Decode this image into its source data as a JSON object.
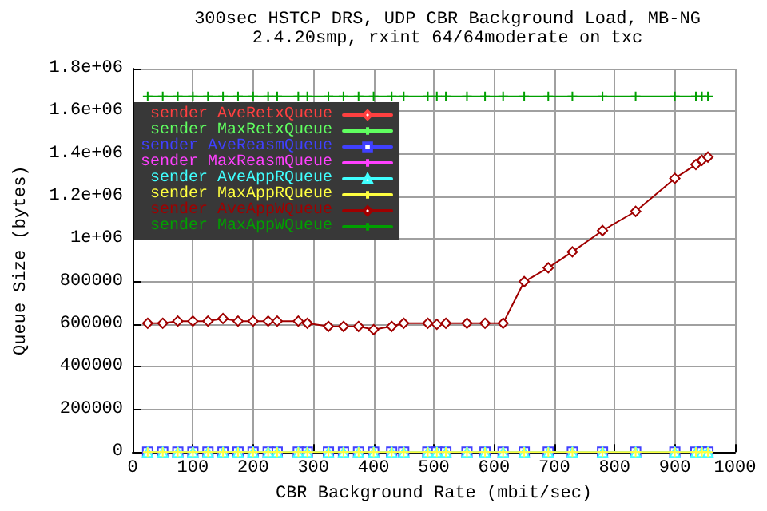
{
  "chart_data": {
    "type": "line",
    "title": "300sec HSTCP DRS, UDP CBR Background Load, MB-NG",
    "subtitle": "2.4.20smp, rxint 64/64moderate on txc",
    "xlabel": "CBR Background Rate (mbit/sec)",
    "ylabel": "Queue Size (bytes)",
    "x": [
      25,
      50,
      75,
      100,
      125,
      150,
      175,
      200,
      225,
      240,
      275,
      290,
      325,
      350,
      375,
      400,
      430,
      450,
      490,
      505,
      520,
      555,
      585,
      615,
      650,
      690,
      730,
      780,
      835,
      900,
      935,
      945,
      955
    ],
    "series": [
      {
        "name": "sender AveRetxQueue",
        "color": "#ff4040",
        "marker": "diamond",
        "values": [
          null,
          null,
          null,
          null,
          null,
          null,
          null,
          null,
          null,
          null,
          null,
          null,
          null,
          null,
          null,
          null,
          null,
          null,
          null,
          null,
          null,
          null,
          null,
          null,
          null,
          null,
          null,
          null,
          null,
          null,
          null,
          null,
          null
        ]
      },
      {
        "name": "sender MaxRetxQueue",
        "color": "#60ff60",
        "marker": "cross",
        "values": [
          null,
          null,
          null,
          null,
          null,
          null,
          null,
          null,
          null,
          null,
          null,
          null,
          null,
          null,
          null,
          null,
          null,
          null,
          null,
          null,
          null,
          null,
          null,
          null,
          null,
          null,
          null,
          null,
          null,
          null,
          null,
          null,
          null
        ]
      },
      {
        "name": "sender AveReasmQueue",
        "color": "#4040ff",
        "marker": "square",
        "values": [
          0,
          0,
          0,
          0,
          0,
          0,
          0,
          0,
          0,
          0,
          0,
          0,
          0,
          0,
          0,
          0,
          0,
          0,
          0,
          0,
          0,
          0,
          0,
          0,
          0,
          0,
          0,
          0,
          0,
          0,
          0,
          0,
          0
        ]
      },
      {
        "name": "sender MaxReasmQueue",
        "color": "#ff40ff",
        "marker": "cross",
        "values": [
          null,
          null,
          null,
          null,
          null,
          null,
          null,
          null,
          null,
          null,
          null,
          null,
          null,
          null,
          null,
          null,
          null,
          null,
          null,
          null,
          null,
          null,
          null,
          null,
          null,
          null,
          null,
          null,
          null,
          null,
          null,
          null,
          null
        ]
      },
      {
        "name": "sender AveAppRQueue",
        "color": "#40ffff",
        "marker": "triangle",
        "values": [
          0,
          0,
          0,
          0,
          0,
          0,
          0,
          0,
          0,
          0,
          0,
          0,
          0,
          0,
          0,
          0,
          0,
          0,
          0,
          0,
          0,
          0,
          0,
          0,
          0,
          0,
          0,
          0,
          0,
          0,
          0,
          0,
          0
        ]
      },
      {
        "name": "sender MaxAppRQueue",
        "color": "#ffff40",
        "marker": "cross",
        "values": [
          0,
          0,
          0,
          0,
          0,
          0,
          0,
          0,
          0,
          0,
          0,
          0,
          0,
          0,
          0,
          0,
          0,
          0,
          0,
          0,
          0,
          0,
          0,
          0,
          0,
          0,
          0,
          0,
          0,
          0,
          0,
          0,
          0
        ]
      },
      {
        "name": "sender AveAppWQueue",
        "color": "#a00000",
        "marker": "diamond",
        "values": [
          605000,
          605000,
          615000,
          615000,
          615000,
          627000,
          615000,
          615000,
          615000,
          615000,
          615000,
          605000,
          590000,
          590000,
          590000,
          575000,
          590000,
          605000,
          605000,
          600000,
          605000,
          605000,
          605000,
          605000,
          800000,
          865000,
          940000,
          1040000,
          1130000,
          1285000,
          1350000,
          1370000,
          1385000
        ]
      },
      {
        "name": "sender MaxAppWQueue",
        "color": "#00a000",
        "marker": "cross",
        "values": [
          1670000,
          1670000,
          1670000,
          1670000,
          1670000,
          1670000,
          1670000,
          1670000,
          1670000,
          1670000,
          1670000,
          1670000,
          1670000,
          1670000,
          1670000,
          1670000,
          1670000,
          1670000,
          1670000,
          1670000,
          1670000,
          1670000,
          1670000,
          1670000,
          1670000,
          1670000,
          1670000,
          1670000,
          1670000,
          1670000,
          1670000,
          1670000,
          1670000
        ]
      }
    ],
    "xlim": [
      0,
      1000
    ],
    "xticks": [
      0,
      100,
      200,
      300,
      400,
      500,
      600,
      700,
      800,
      900,
      1000
    ],
    "ylim": [
      0,
      1800000
    ],
    "yticks": [
      0,
      200000,
      400000,
      600000,
      800000,
      {
        "value": 1000000,
        "label": "1e+06"
      },
      {
        "value": 1200000,
        "label": "1.2e+06"
      },
      {
        "value": 1400000,
        "label": "1.4e+06"
      },
      {
        "value": 1600000,
        "label": "1.6e+06"
      },
      {
        "value": 1800000,
        "label": "1.8e+06"
      }
    ],
    "grid": true,
    "legend": "top left",
    "line_style": "solid"
  }
}
